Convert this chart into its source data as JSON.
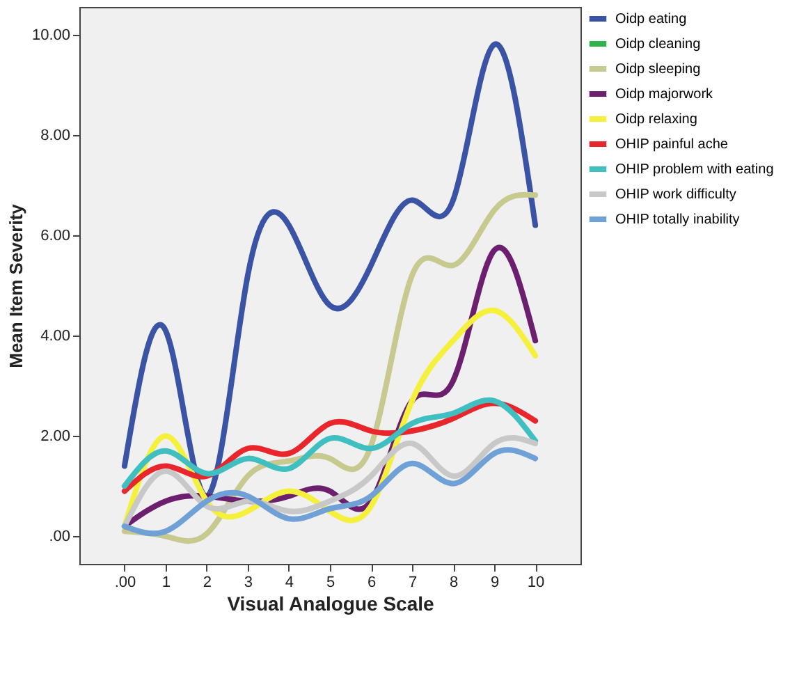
{
  "chart_data": {
    "type": "line",
    "xlabel": "Visual Analogue Scale",
    "ylabel": "Mean Item Severity",
    "x": [
      0,
      1,
      2,
      3,
      4,
      5,
      6,
      7,
      8,
      9,
      10
    ],
    "xlim": [
      -1.1,
      11.1
    ],
    "xticks": [
      {
        "value": 0,
        "label": ".00"
      },
      1,
      2,
      3,
      4,
      5,
      6,
      7,
      8,
      9,
      10
    ],
    "ylim": [
      -0.55,
      10.55
    ],
    "yticks": [
      {
        "value": 0,
        "label": ".00"
      },
      {
        "value": 2,
        "label": "2.00"
      },
      {
        "value": 4,
        "label": "4.00"
      },
      {
        "value": 6,
        "label": "6.00"
      },
      {
        "value": 8,
        "label": "8.00"
      },
      {
        "value": 10,
        "label": "10.00"
      }
    ],
    "grid": false,
    "legend": "top right",
    "marker": "none",
    "line_style": "solid",
    "series": [
      {
        "name": "Oidp eating",
        "color": "#3a53a4",
        "values": [
          1.4,
          4.1,
          0.8,
          5.2,
          6.2,
          4.6,
          5.4,
          6.7,
          6.7,
          9.8,
          6.2
        ]
      },
      {
        "name": "Oidp cleaning",
        "color": "#2fb34a",
        "values": [
          null,
          null,
          null,
          null,
          null,
          null,
          null,
          null,
          null,
          null,
          null
        ]
      },
      {
        "name": "Oidp sleeping",
        "color": "#c8c98f",
        "values": [
          0.1,
          0.0,
          0.05,
          1.2,
          1.5,
          1.55,
          1.8,
          5.2,
          5.4,
          6.5,
          6.8
        ]
      },
      {
        "name": "Oidp majorwork",
        "color": "#6b1f6e",
        "values": [
          0.2,
          0.7,
          0.8,
          0.7,
          0.8,
          0.9,
          0.7,
          2.7,
          3.1,
          5.7,
          3.9
        ]
      },
      {
        "name": "Oidp relaxing",
        "color": "#f5f03c",
        "values": [
          0.2,
          2.0,
          0.7,
          0.5,
          0.9,
          0.5,
          0.6,
          2.7,
          3.9,
          4.5,
          3.6
        ]
      },
      {
        "name": "OHIP painful ache",
        "color": "#e8262b",
        "values": [
          0.9,
          1.4,
          1.2,
          1.75,
          1.65,
          2.25,
          2.1,
          2.1,
          2.35,
          2.65,
          2.3
        ]
      },
      {
        "name": "OHIP problem with eating",
        "color": "#3fbfbf",
        "values": [
          1.0,
          1.7,
          1.25,
          1.55,
          1.35,
          1.95,
          1.75,
          2.25,
          2.45,
          2.7,
          1.9
        ]
      },
      {
        "name": "OHIP work difficulty",
        "color": "#c8c8c8",
        "values": [
          0.2,
          1.3,
          0.6,
          0.7,
          0.5,
          0.7,
          1.2,
          1.85,
          1.2,
          1.85,
          1.85
        ]
      },
      {
        "name": "OHIP  totally inability",
        "color": "#6fa0d6",
        "values": [
          0.2,
          0.1,
          0.7,
          0.8,
          0.35,
          0.55,
          0.8,
          1.45,
          1.05,
          1.65,
          1.55
        ]
      }
    ]
  }
}
